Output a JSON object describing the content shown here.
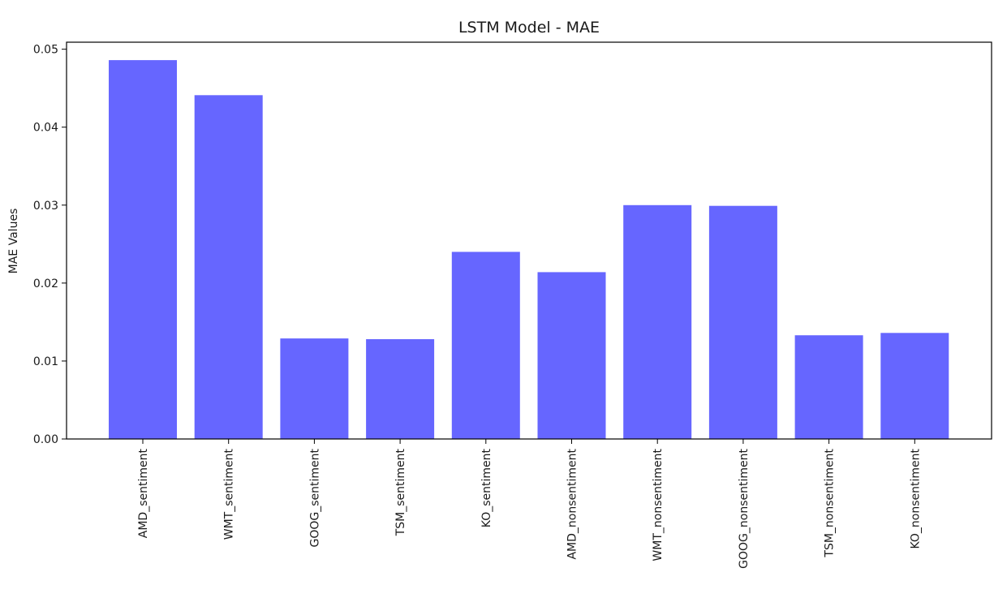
{
  "chart_data": {
    "type": "bar",
    "title": "LSTM Model - MAE",
    "xlabel": "",
    "ylabel": "MAE Values",
    "categories": [
      "AMD_sentiment",
      "WMT_sentiment",
      "GOOG_sentiment",
      "TSM_sentiment",
      "KO_sentiment",
      "AMD_nonsentiment",
      "WMT_nonsentiment",
      "GOOG_nonsentiment",
      "TSM_nonsentiment",
      "KO_nonsentiment"
    ],
    "values": [
      0.0486,
      0.0441,
      0.0129,
      0.0128,
      0.024,
      0.0214,
      0.03,
      0.0299,
      0.0133,
      0.0136
    ],
    "ylim": [
      0,
      0.0509
    ],
    "yticks": [
      "0.00",
      "0.01",
      "0.02",
      "0.03",
      "0.04",
      "0.05"
    ],
    "ytick_values": [
      0,
      0.01,
      0.02,
      0.03,
      0.04,
      0.05
    ],
    "bar_color": "#6666ff",
    "grid": false,
    "legend": "none"
  }
}
